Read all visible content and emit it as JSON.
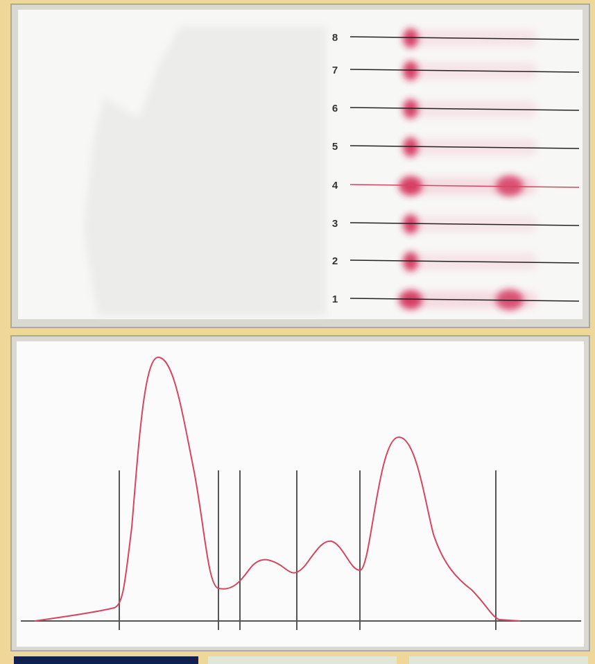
{
  "lanes": [
    "8",
    "7",
    "6",
    "5",
    "4",
    "3",
    "2",
    "1"
  ]
}
